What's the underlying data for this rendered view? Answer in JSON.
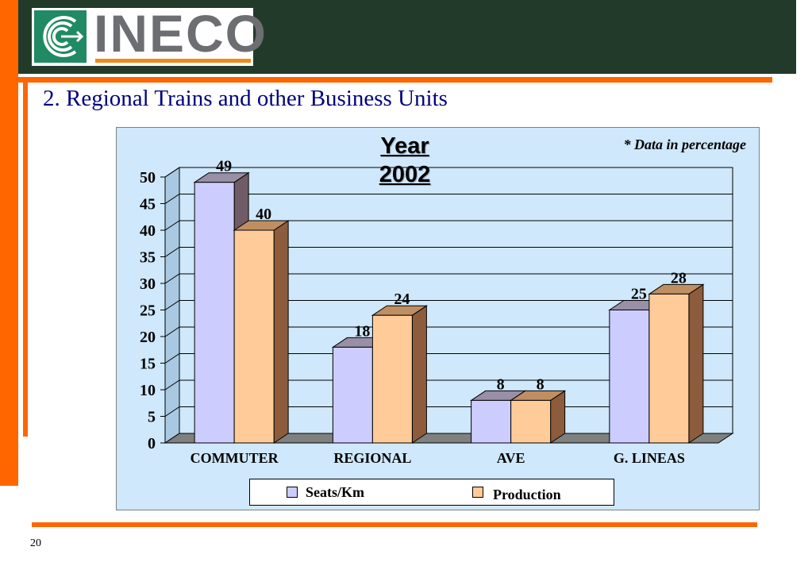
{
  "slide": {
    "logo_text": "INECO",
    "title": "2. Regional Trains and other Business Units",
    "page_number": "20"
  },
  "colors": {
    "accent_orange": "#ff6600",
    "header_dark_green": "#223a2a",
    "chart_background": "#cfe8fb",
    "seats_color": "#ccccff",
    "production_color": "#ffcc99"
  },
  "chart_data": {
    "type": "bar",
    "title": "Year 2002",
    "title_lines": [
      "Year",
      "2002"
    ],
    "note": "* Data in percentage",
    "categories": [
      "COMMUTER",
      "REGIONAL",
      "AVE",
      "G. LINEAS"
    ],
    "series": [
      {
        "name": "Seats/Km",
        "values": [
          49,
          18,
          8,
          25
        ],
        "color": "#ccccff"
      },
      {
        "name": "Production",
        "values": [
          40,
          24,
          8,
          28
        ],
        "color": "#ffcc99"
      }
    ],
    "yticks": [
      0,
      5,
      10,
      15,
      20,
      25,
      30,
      35,
      40,
      45,
      50
    ],
    "ylim": [
      0,
      50
    ],
    "grid": true,
    "legend_position": "bottom",
    "style": "3d"
  }
}
